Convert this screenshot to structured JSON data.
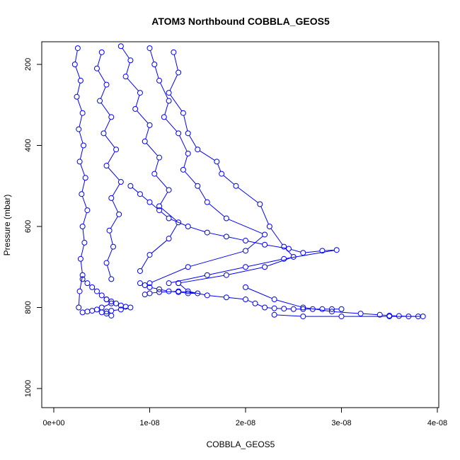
{
  "chart_data": {
    "type": "line",
    "title": "ATOM3 Northbound COBBLA_GEOS5",
    "xlabel": "COBBLA_GEOS5",
    "ylabel": "Pressure (mbar)",
    "xlim": [
      0,
      4e-08
    ],
    "ylim": [
      1040,
      150
    ],
    "y_reversed": true,
    "grid": false,
    "legend": "none",
    "marker": "open-circle",
    "x_ticks": [
      {
        "value": 0,
        "label": "0e+00"
      },
      {
        "value": 1e-08,
        "label": "1e-08"
      },
      {
        "value": 2e-08,
        "label": "2e-08"
      },
      {
        "value": 3e-08,
        "label": "3e-08"
      },
      {
        "value": 4e-08,
        "label": "4e-08"
      }
    ],
    "y_ticks": [
      {
        "value": 200,
        "label": "200"
      },
      {
        "value": 400,
        "label": "400"
      },
      {
        "value": 600,
        "label": "600"
      },
      {
        "value": 800,
        "label": "800"
      },
      {
        "value": 1000,
        "label": "1000"
      }
    ],
    "series": [
      {
        "x": [
          2.5e-09,
          2.2e-09,
          2.8e-09,
          2.4e-09,
          3e-09,
          2.6e-09,
          3.1e-09,
          2.7e-09,
          3.3e-09,
          2.9e-09,
          3.5e-09,
          3e-09,
          3.2e-09,
          2.8e-09,
          3e-09,
          2.7e-09,
          2.6e-09
        ],
        "y": [
          160,
          200,
          240,
          280,
          320,
          360,
          400,
          440,
          480,
          520,
          560,
          600,
          640,
          680,
          720,
          760,
          800
        ]
      },
      {
        "x": [
          5e-09,
          4.5e-09,
          5.5e-09,
          4.8e-09,
          6e-09,
          5.2e-09,
          6.5e-09,
          5.5e-09,
          7e-09,
          6e-09,
          6.8e-09,
          5.8e-09,
          6.2e-09,
          5.5e-09,
          6e-09
        ],
        "y": [
          170,
          210,
          250,
          290,
          330,
          370,
          410,
          450,
          490,
          530,
          570,
          610,
          650,
          690,
          730
        ]
      },
      {
        "x": [
          7e-09,
          8e-09,
          7.5e-09,
          9e-09,
          8.5e-09,
          1e-08,
          9.5e-09,
          1.1e-08,
          1.05e-08,
          1.2e-08,
          1.1e-08,
          1.3e-08,
          1.2e-08,
          1e-08,
          9e-09
        ],
        "y": [
          155,
          190,
          230,
          270,
          310,
          350,
          390,
          430,
          470,
          510,
          550,
          590,
          630,
          670,
          710
        ]
      },
      {
        "x": [
          1e-08,
          1.05e-08,
          1.1e-08,
          1.2e-08,
          1.15e-08,
          1.3e-08,
          1.4e-08,
          1.35e-08,
          1.5e-08,
          1.6e-08,
          1.8e-08,
          2.2e-08,
          2e-08,
          1.4e-08,
          1e-08
        ],
        "y": [
          160,
          200,
          240,
          290,
          330,
          370,
          420,
          460,
          500,
          540,
          580,
          620,
          660,
          700,
          740
        ]
      },
      {
        "x": [
          1.25e-08,
          1.3e-08,
          1.2e-08,
          1.35e-08,
          1.4e-08,
          1.5e-08,
          1.7e-08,
          1.75e-08,
          1.9e-08,
          2.15e-08,
          2.25e-08,
          2.4e-08,
          2.5e-08,
          2.2e-08,
          1.8e-08,
          1.3e-08
        ],
        "y": [
          170,
          220,
          270,
          320,
          370,
          410,
          440,
          470,
          500,
          545,
          600,
          650,
          675,
          700,
          720,
          740
        ]
      },
      {
        "x": [
          8e-09,
          9e-09,
          1e-08,
          1.1e-08,
          1.2e-08,
          1.4e-08,
          1.6e-08,
          1.8e-08,
          2e-08,
          2.2e-08,
          2.45e-08,
          2.6e-08,
          2.8e-08,
          2.95e-08,
          2.4e-08,
          2e-08,
          1.6e-08,
          1.2e-08
        ],
        "y": [
          500,
          520,
          540,
          560,
          580,
          600,
          615,
          625,
          635,
          645,
          655,
          665,
          660,
          658,
          680,
          700,
          720,
          740
        ]
      },
      {
        "x": [
          1.3e-08,
          1.4e-08,
          1.6e-08,
          1.8e-08,
          2e-08,
          2.1e-08,
          2.2e-08,
          2.3e-08,
          2.4e-08,
          2.5e-08,
          2.6e-08,
          2.7e-08,
          2.8e-08,
          2.9e-08,
          3e-08
        ],
        "y": [
          740,
          760,
          770,
          775,
          780,
          790,
          800,
          802,
          803,
          804,
          804,
          804,
          804,
          804,
          804
        ]
      },
      {
        "x": [
          2e-08,
          2.3e-08,
          2.6e-08,
          2.9e-08,
          3.2e-08,
          3.4e-08,
          3.5e-08,
          3.6e-08,
          3.7e-08,
          3.8e-08,
          3.85e-08,
          3.5e-08,
          3e-08,
          2.6e-08,
          2.3e-08
        ],
        "y": [
          750,
          780,
          800,
          810,
          815,
          818,
          820,
          821,
          822,
          822,
          822,
          822,
          822,
          822,
          818
        ]
      },
      {
        "x": [
          3e-09,
          3.5e-09,
          4e-09,
          4.5e-09,
          5e-09,
          5.5e-09,
          6e-09,
          5e-09,
          4.5e-09,
          4e-09,
          3.5e-09,
          3e-09
        ],
        "y": [
          730,
          740,
          750,
          760,
          770,
          780,
          790,
          800,
          805,
          808,
          810,
          812
        ]
      },
      {
        "x": [
          9e-09,
          9.5e-09,
          1e-08,
          1.1e-08,
          1.2e-08,
          1.3e-08,
          1.4e-08,
          1.5e-08,
          1.3e-08,
          1.1e-08,
          1e-08,
          9.5e-09
        ],
        "y": [
          740,
          745,
          750,
          755,
          760,
          762,
          765,
          765,
          760,
          762,
          765,
          768
        ]
      },
      {
        "x": [
          5.5e-09,
          6e-09,
          6.5e-09,
          7e-09,
          7.5e-09,
          8e-09,
          7e-09,
          6e-09,
          5.5e-09,
          5e-09,
          5.5e-09,
          6e-09
        ],
        "y": [
          780,
          785,
          790,
          795,
          798,
          800,
          805,
          808,
          810,
          812,
          815,
          820
        ]
      }
    ]
  }
}
